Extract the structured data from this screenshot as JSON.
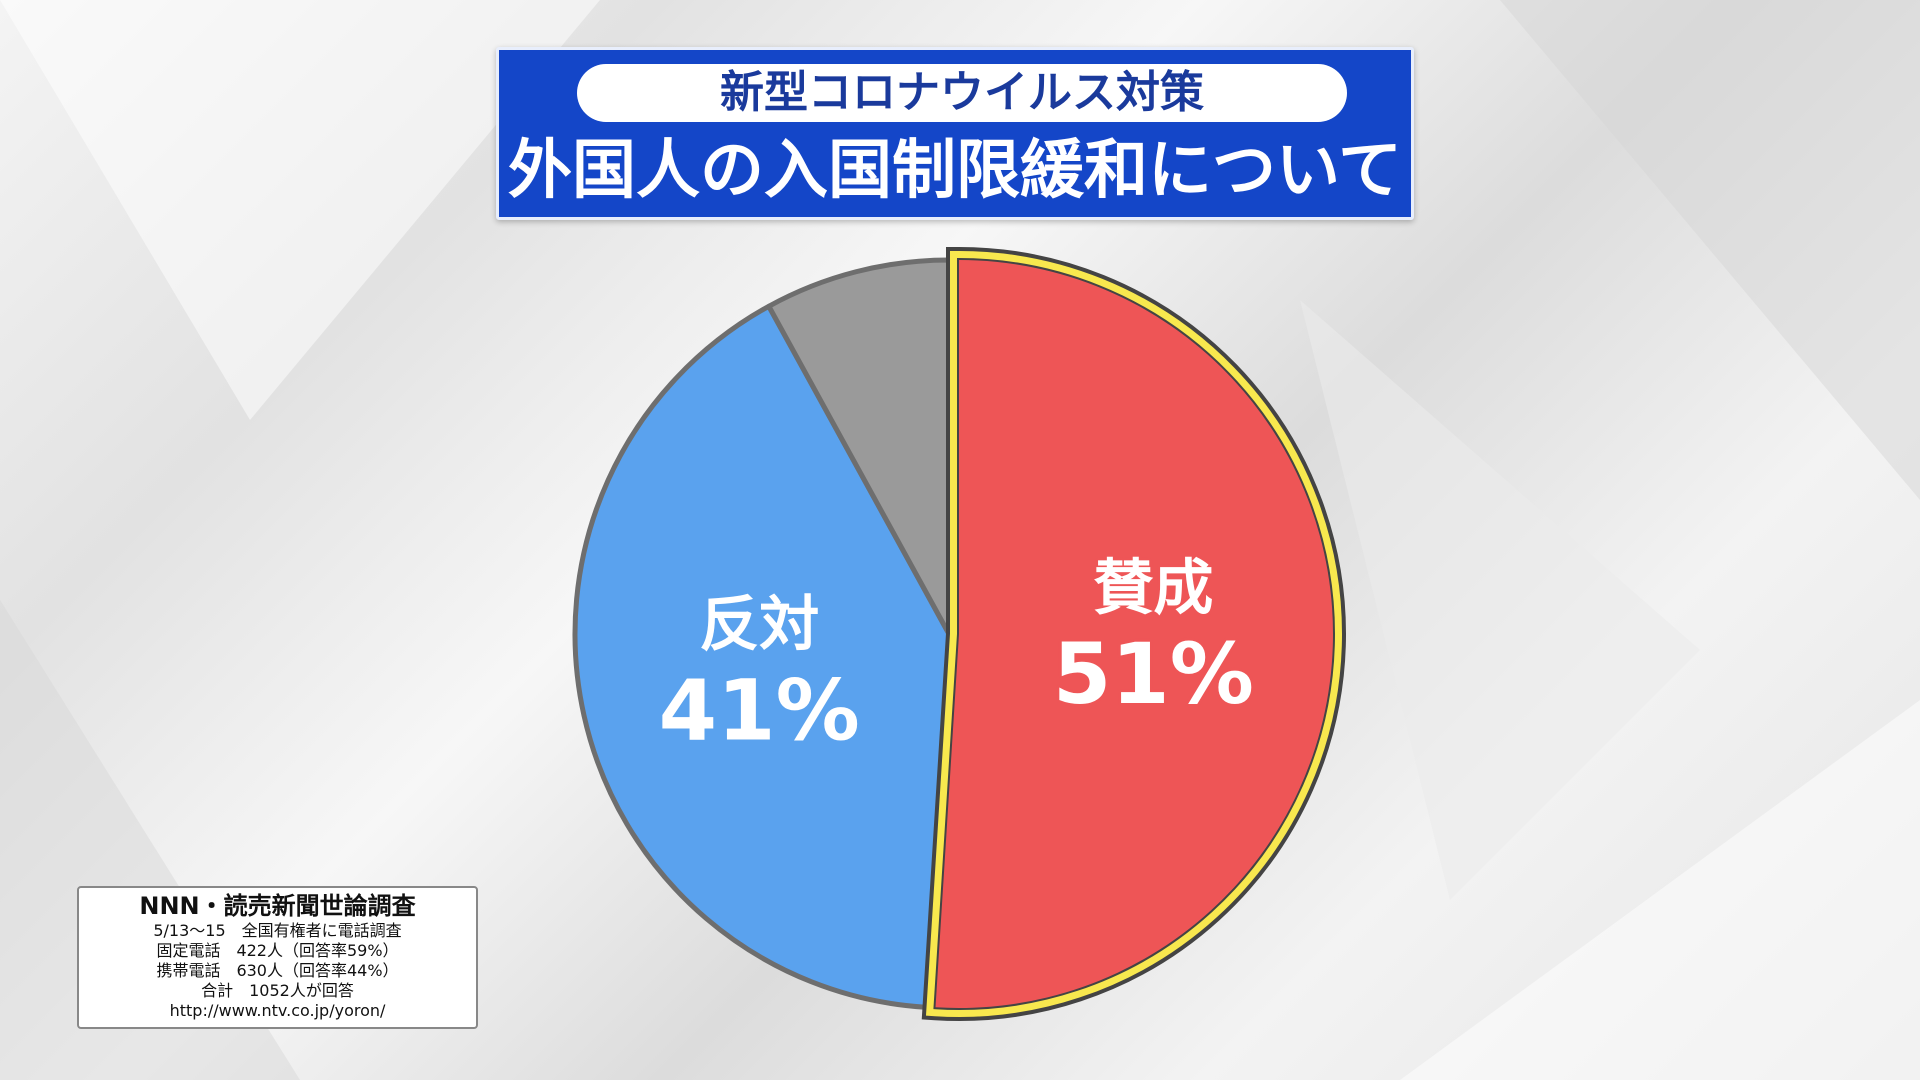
{
  "chart_data": {
    "type": "pie",
    "subtitle": "新型コロナウイルス対策",
    "title": "外国人の入国制限緩和について",
    "categories": [
      "賛成",
      "反対",
      null
    ],
    "values": [
      51,
      41,
      8
    ],
    "value_labels": [
      "51%",
      "41%",
      null
    ],
    "colors": [
      "#ee5556",
      "#5aa2ee",
      "#9a9a9a"
    ],
    "explode": [
      true,
      false,
      false
    ]
  },
  "note": {
    "lines": [
      "NNN・読売新聞世論調査",
      "5/13～15　全国有権者に電話調査",
      "固定電話　422人（回答率59%）",
      "携帯電話　630人（回答率44%）",
      "合計　1052人が回答",
      "http://www.ntv.co.jp/yoron/"
    ]
  }
}
